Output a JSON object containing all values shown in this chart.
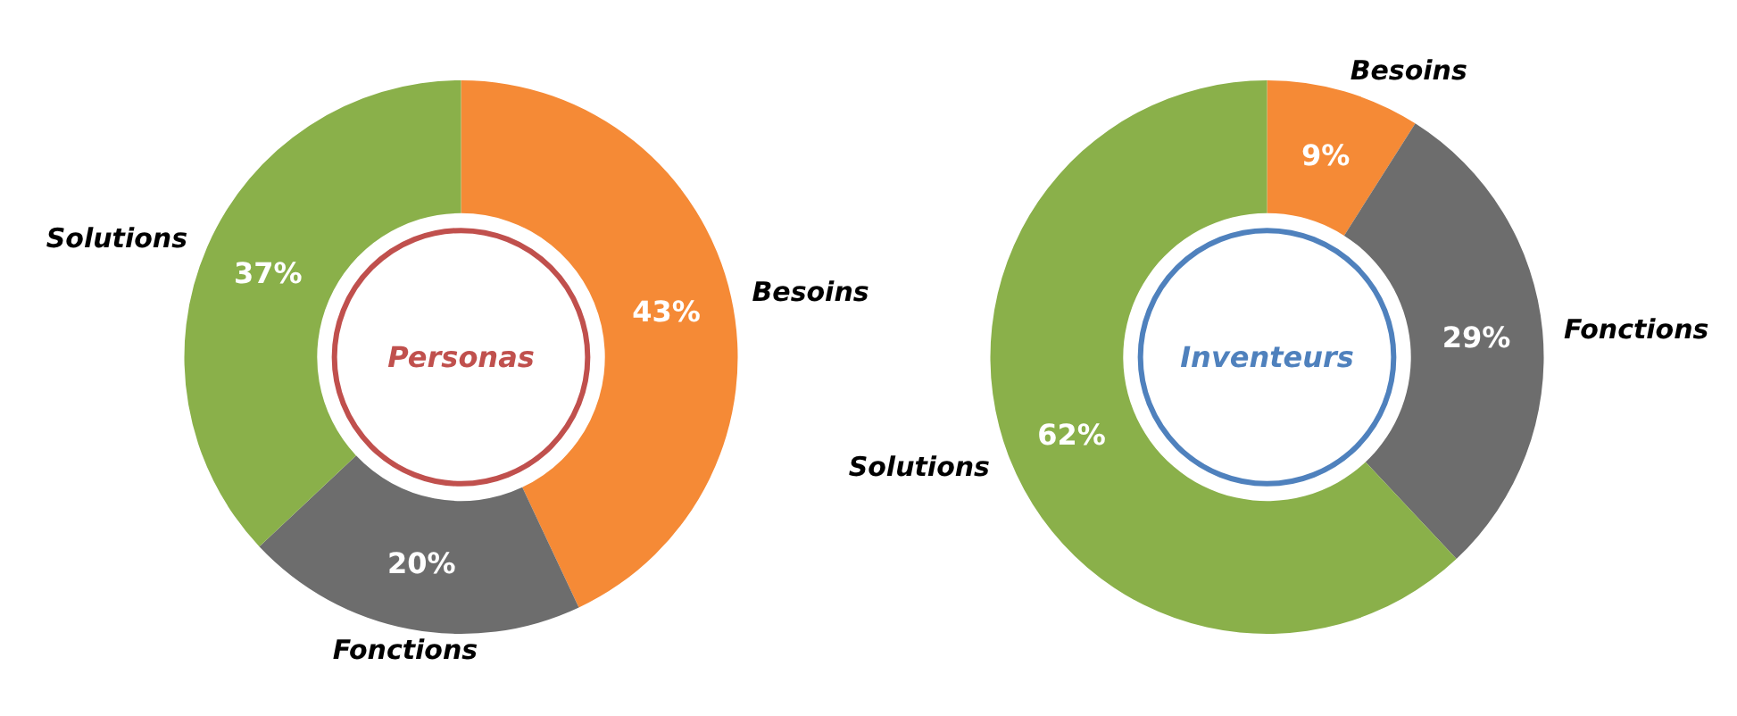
{
  "chart_data": [
    {
      "type": "donut",
      "title": "Personas",
      "categories": [
        "Besoins",
        "Fonctions",
        "Solutions"
      ],
      "values": [
        43,
        20,
        37
      ],
      "colors": [
        "#f58a36",
        "#6d6d6d",
        "#8ab04a"
      ],
      "value_labels": [
        "43%",
        "20%",
        "37%"
      ]
    },
    {
      "type": "donut",
      "title": "Inventeurs",
      "categories": [
        "Besoins",
        "Fonctions",
        "Solutions"
      ],
      "values": [
        9,
        29,
        62
      ],
      "colors": [
        "#f58a36",
        "#6d6d6d",
        "#8ab04a"
      ],
      "value_labels": [
        "9%",
        "29%",
        "62%"
      ]
    }
  ]
}
